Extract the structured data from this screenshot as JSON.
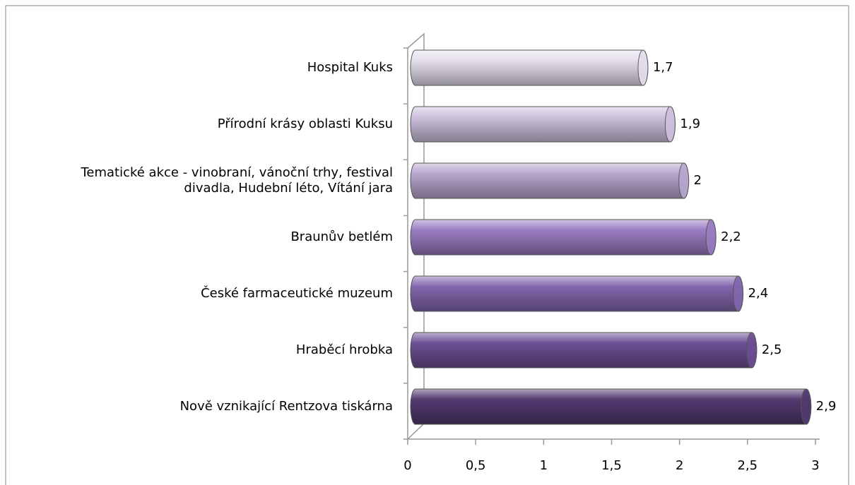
{
  "chart_data": {
    "type": "bar",
    "orientation": "horizontal",
    "categories": [
      "Hospital Kuks",
      "Přírodní krásy oblasti Kuksu",
      "Tematické akce - vinobraní, vánoční trhy, festival\ndivadla, Hudební léto, Vítání jara",
      "Braunův betlém",
      "České farmaceutické muzeum",
      "Hraběcí hrobka",
      "Nově vznikající Rentzova tiskárna"
    ],
    "values": [
      1.7,
      1.9,
      2,
      2.2,
      2.4,
      2.5,
      2.9
    ],
    "value_labels": [
      "1,7",
      "1,9",
      "2",
      "2,2",
      "2,4",
      "2,5",
      "2,9"
    ],
    "colors": [
      "#e4deec",
      "#cdc1dd",
      "#b7a6ce",
      "#9a7cc2",
      "#8366ad",
      "#6c4f93",
      "#523a70"
    ],
    "xlim": [
      0,
      3
    ],
    "xticks": [
      0,
      {
        "value": 0.5,
        "label": "0,5"
      },
      1,
      {
        "value": 1.5,
        "label": "1,5"
      },
      2,
      {
        "value": 2.5,
        "label": "2,5"
      },
      3
    ]
  }
}
